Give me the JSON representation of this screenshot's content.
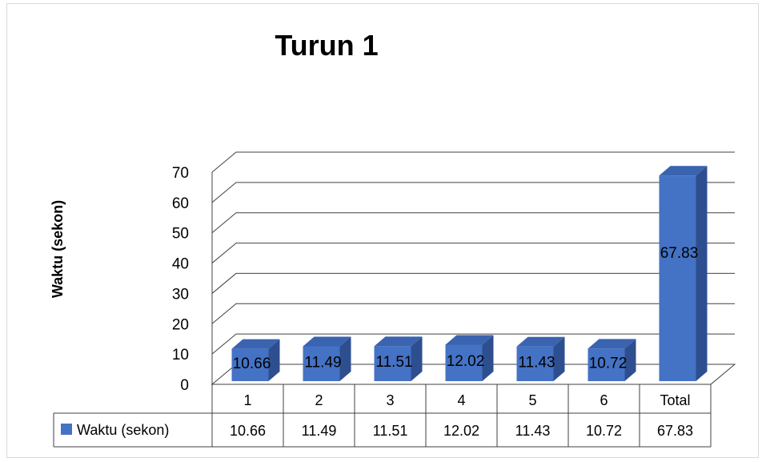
{
  "chart_data": {
    "type": "bar",
    "title": "Turun 1",
    "xlabel": "",
    "ylabel": "Waktu (sekon)",
    "ylim": [
      0,
      70
    ],
    "yticks": [
      "0",
      "10",
      "20",
      "30",
      "40",
      "50",
      "60",
      "70"
    ],
    "categories": [
      "1",
      "2",
      "3",
      "4",
      "5",
      "6",
      "Total"
    ],
    "series": [
      {
        "name": "Waktu (sekon)",
        "values": [
          10.66,
          11.49,
          11.51,
          12.02,
          11.43,
          10.72,
          67.83
        ]
      }
    ],
    "data_labels": [
      "10.66",
      "11.49",
      "11.51",
      "12.02",
      "11.43",
      "10.72",
      "67.83"
    ],
    "grid": true,
    "legend": "data-table",
    "colors": {
      "bar_front": "#4472C4",
      "bar_side": "#2E4F8F",
      "bar_top": "#3A63B0",
      "grid": "#404040"
    }
  }
}
